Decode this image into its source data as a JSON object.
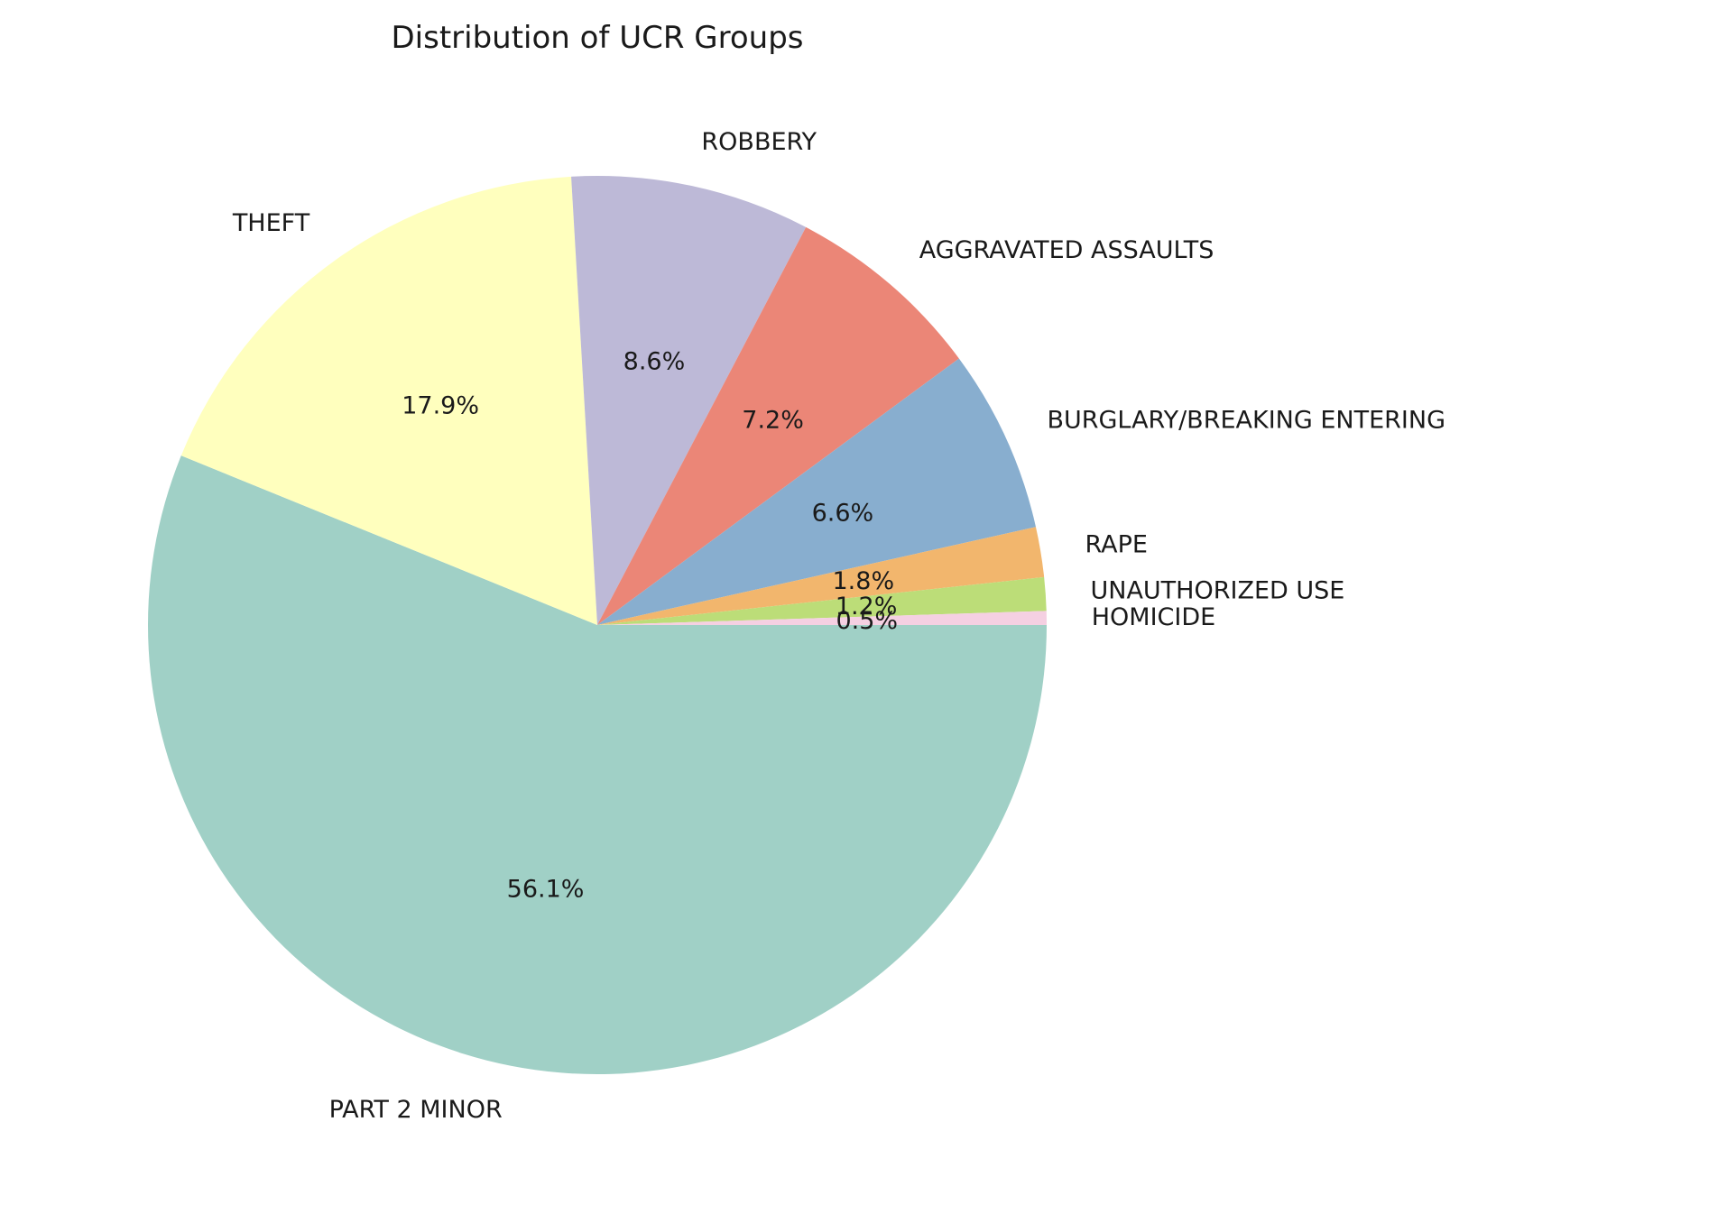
{
  "chart_data": {
    "type": "pie",
    "title": "Distribution of UCR Groups",
    "categories": [
      "PART 2 MINOR",
      "THEFT",
      "ROBBERY",
      "AGGRAVATED ASSAULTS",
      "BURGLARY/BREAKING ENTERING",
      "RAPE",
      "UNAUTHORIZED USE",
      "HOMICIDE"
    ],
    "values": [
      56.1,
      17.9,
      8.6,
      7.2,
      6.6,
      1.8,
      1.2,
      0.5
    ],
    "value_labels": [
      "56.1%",
      "17.9%",
      "8.6%",
      "7.2%",
      "6.6%",
      "1.8%",
      "1.2%",
      "0.5%"
    ],
    "colors": [
      "#a0d0c6",
      "#ffffbe",
      "#bdb9d7",
      "#eb8677",
      "#88aecf",
      "#f2b66d",
      "#bcdd78",
      "#f5d0e2"
    ],
    "start_angle": 0,
    "direction": "clockwise"
  }
}
